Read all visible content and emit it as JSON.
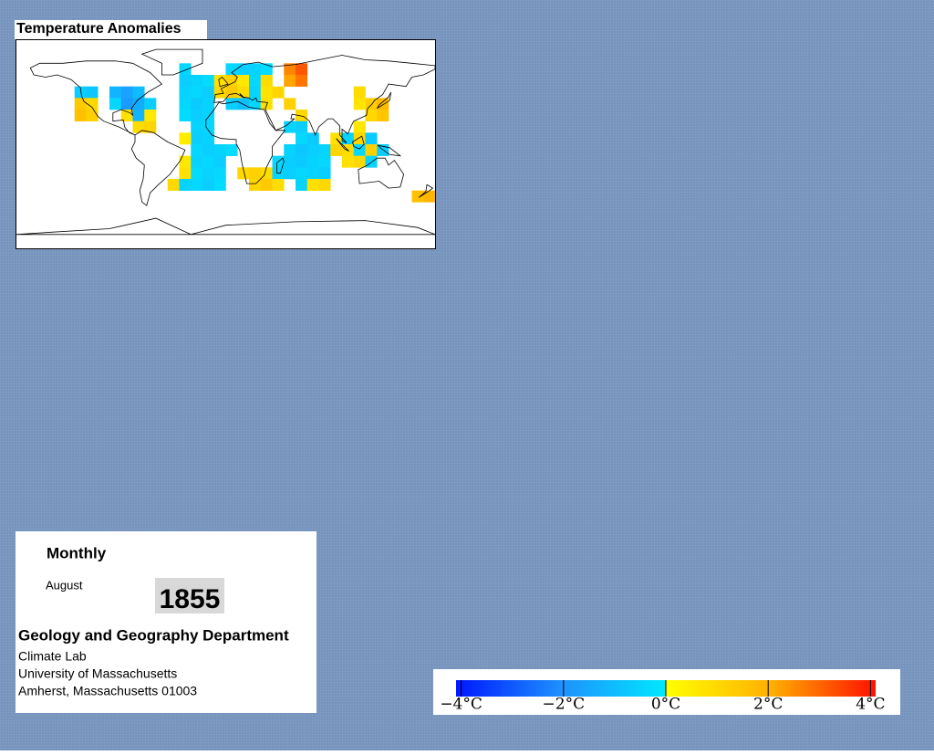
{
  "header": {
    "title": "Temperature Anomalies"
  },
  "map": {
    "lon_lim": [
      -180,
      180
    ],
    "lat_lim": [
      -90,
      90
    ],
    "cell_size": 10,
    "cells": [
      [
        -130,
        50,
        -0.6
      ],
      [
        -120,
        50,
        -0.8
      ],
      [
        -130,
        40,
        1.4
      ],
      [
        -120,
        40,
        1.0
      ],
      [
        -130,
        30,
        1.6
      ],
      [
        -120,
        30,
        1.2
      ],
      [
        -100,
        50,
        -1.2
      ],
      [
        -90,
        50,
        -1.6
      ],
      [
        -80,
        50,
        -1.0
      ],
      [
        -100,
        40,
        -0.4
      ],
      [
        -90,
        40,
        -1.8
      ],
      [
        -80,
        40,
        -1.4
      ],
      [
        -70,
        40,
        -0.6
      ],
      [
        -90,
        30,
        0.8
      ],
      [
        -80,
        30,
        -1.2
      ],
      [
        -70,
        30,
        0.6
      ],
      [
        -80,
        20,
        0.9
      ],
      [
        -70,
        20,
        1.1
      ],
      [
        -40,
        70,
        -0.4
      ],
      [
        -30,
        60,
        -0.5
      ],
      [
        -40,
        60,
        -0.6
      ],
      [
        -20,
        60,
        -0.3
      ],
      [
        -40,
        50,
        -0.5
      ],
      [
        -30,
        50,
        -0.4
      ],
      [
        -20,
        50,
        -0.6
      ],
      [
        -30,
        40,
        -0.7
      ],
      [
        -20,
        40,
        -0.5
      ],
      [
        -40,
        40,
        -0.4
      ],
      [
        -30,
        30,
        -0.6
      ],
      [
        -20,
        30,
        -0.5
      ],
      [
        -40,
        30,
        -0.3
      ],
      [
        -30,
        20,
        -0.5
      ],
      [
        -20,
        20,
        -0.4
      ],
      [
        -30,
        10,
        -0.6
      ],
      [
        -20,
        10,
        -0.5
      ],
      [
        -40,
        10,
        0.5
      ],
      [
        -30,
        0,
        -0.4
      ],
      [
        -20,
        0,
        -0.6
      ],
      [
        -10,
        0,
        -0.5
      ],
      [
        0,
        0,
        -0.3
      ],
      [
        -40,
        -10,
        0.6
      ],
      [
        -30,
        -10,
        -0.5
      ],
      [
        -20,
        -10,
        -0.4
      ],
      [
        -10,
        -10,
        -0.6
      ],
      [
        -40,
        -20,
        0.8
      ],
      [
        -30,
        -20,
        -0.3
      ],
      [
        -20,
        -20,
        -0.5
      ],
      [
        -10,
        -20,
        -0.4
      ],
      [
        -50,
        -30,
        1.0
      ],
      [
        -40,
        -30,
        -0.5
      ],
      [
        -30,
        -30,
        -0.4
      ],
      [
        -20,
        -30,
        -0.6
      ],
      [
        -10,
        -30,
        -0.3
      ],
      [
        0,
        70,
        -0.4
      ],
      [
        10,
        70,
        -0.6
      ],
      [
        20,
        70,
        -0.5
      ],
      [
        30,
        70,
        -0.3
      ],
      [
        -10,
        60,
        0.8
      ],
      [
        0,
        60,
        1.2
      ],
      [
        10,
        60,
        0.6
      ],
      [
        20,
        60,
        -0.4
      ],
      [
        30,
        60,
        0.9
      ],
      [
        -10,
        50,
        1.0
      ],
      [
        0,
        50,
        1.4
      ],
      [
        10,
        50,
        0.9
      ],
      [
        20,
        50,
        -0.5
      ],
      [
        30,
        50,
        0.7
      ],
      [
        40,
        50,
        1.1
      ],
      [
        50,
        70,
        2.6
      ],
      [
        60,
        70,
        3.2
      ],
      [
        50,
        60,
        2.2
      ],
      [
        60,
        60,
        2.8
      ],
      [
        0,
        40,
        -0.6
      ],
      [
        10,
        40,
        -0.9
      ],
      [
        20,
        40,
        -0.4
      ],
      [
        30,
        40,
        0.8
      ],
      [
        50,
        40,
        1.2
      ],
      [
        60,
        30,
        1.0
      ],
      [
        50,
        20,
        -0.5
      ],
      [
        60,
        20,
        -0.6
      ],
      [
        60,
        10,
        -0.4
      ],
      [
        70,
        10,
        -0.7
      ],
      [
        50,
        0,
        -0.5
      ],
      [
        60,
        0,
        -0.8
      ],
      [
        70,
        0,
        -0.6
      ],
      [
        80,
        0,
        -0.5
      ],
      [
        40,
        -10,
        -0.4
      ],
      [
        50,
        -10,
        -0.6
      ],
      [
        60,
        -10,
        -0.7
      ],
      [
        70,
        -10,
        -0.5
      ],
      [
        80,
        -10,
        -0.4
      ],
      [
        10,
        -20,
        1.0
      ],
      [
        20,
        -20,
        1.2
      ],
      [
        30,
        -20,
        0.9
      ],
      [
        40,
        -20,
        -0.5
      ],
      [
        50,
        -20,
        -0.6
      ],
      [
        60,
        -20,
        -0.4
      ],
      [
        70,
        -20,
        -0.5
      ],
      [
        80,
        -20,
        -0.6
      ],
      [
        20,
        -30,
        1.1
      ],
      [
        30,
        -30,
        1.4
      ],
      [
        40,
        -30,
        0.9
      ],
      [
        60,
        -30,
        -0.5
      ],
      [
        70,
        -30,
        0.8
      ],
      [
        80,
        -30,
        1.0
      ],
      [
        110,
        50,
        0.9
      ],
      [
        120,
        40,
        1.3
      ],
      [
        130,
        40,
        1.8
      ],
      [
        110,
        40,
        0.7
      ],
      [
        120,
        30,
        1.0
      ],
      [
        130,
        30,
        1.5
      ],
      [
        110,
        20,
        0.6
      ],
      [
        90,
        10,
        0.8
      ],
      [
        100,
        10,
        -0.5
      ],
      [
        110,
        10,
        1.0
      ],
      [
        120,
        10,
        -0.7
      ],
      [
        90,
        0,
        1.1
      ],
      [
        100,
        0,
        0.9
      ],
      [
        110,
        0,
        -0.4
      ],
      [
        120,
        0,
        1.2
      ],
      [
        130,
        0,
        -0.6
      ],
      [
        100,
        -10,
        0.8
      ],
      [
        110,
        -10,
        1.0
      ],
      [
        120,
        -10,
        -0.5
      ],
      [
        160,
        -40,
        1.6
      ],
      [
        170,
        -40,
        1.9
      ]
    ]
  },
  "colorbar": {
    "lim": [
      -4.1,
      4.1
    ],
    "cold_colors": [
      "#0018ff",
      "#1e90ff",
      "#00e8ff"
    ],
    "warm_colors": [
      "#ffff00",
      "#ffb000",
      "#ff1000"
    ],
    "ticks": [
      {
        "value": -4,
        "label": "−4°C"
      },
      {
        "value": -2,
        "label": "−2°C"
      },
      {
        "value": 0,
        "label": "0°C"
      },
      {
        "value": 2,
        "label": "2°C"
      },
      {
        "value": 4,
        "label": "4°C"
      }
    ]
  },
  "info": {
    "period": "Monthly",
    "month": "August",
    "year": "1855",
    "department": "Geology and Geography Department",
    "address": [
      "Climate Lab",
      "University of Massachusetts",
      "Amherst, Massachusetts 01003"
    ]
  }
}
